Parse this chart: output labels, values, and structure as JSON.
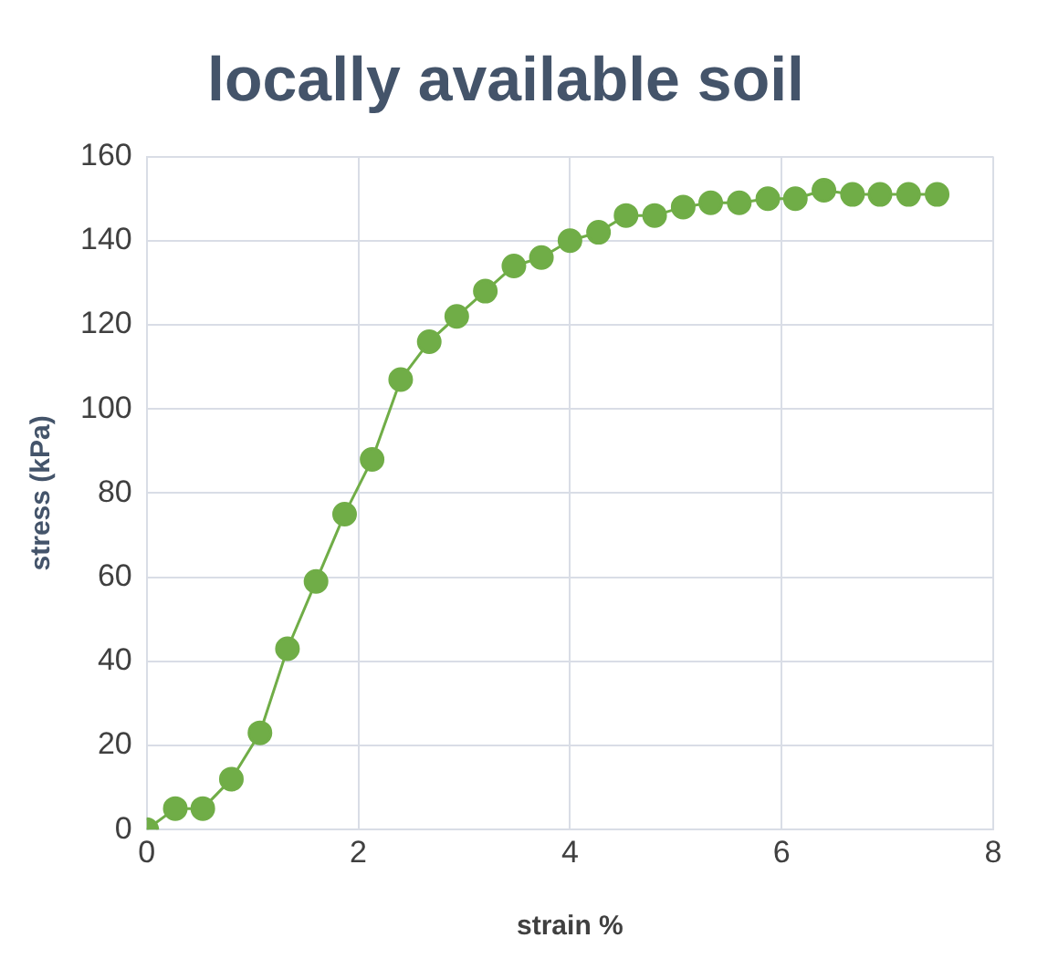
{
  "chart_data": {
    "type": "line",
    "title": "locally available soil",
    "xlabel": "strain %",
    "ylabel": "stress (kPa)",
    "x": [
      0,
      0.27,
      0.53,
      0.8,
      1.07,
      1.33,
      1.6,
      1.87,
      2.13,
      2.4,
      2.67,
      2.93,
      3.2,
      3.47,
      3.73,
      4.0,
      4.27,
      4.53,
      4.8,
      5.07,
      5.33,
      5.6,
      5.87,
      6.13,
      6.4,
      6.67,
      6.93,
      7.2,
      7.47
    ],
    "series": [
      {
        "color": "#70ad47",
        "values": [
          0,
          5,
          5,
          12,
          23,
          43,
          59,
          75,
          88,
          107,
          116,
          122,
          128,
          134,
          136,
          140,
          142,
          146,
          146,
          148,
          149,
          149,
          150,
          150,
          152,
          151,
          151,
          151,
          151
        ]
      }
    ],
    "xlim": [
      0,
      8
    ],
    "xticks": [
      0,
      2,
      4,
      6,
      8
    ],
    "ylim": [
      0,
      160
    ],
    "yticks": [
      0,
      20,
      40,
      60,
      80,
      100,
      120,
      140,
      160
    ],
    "grid": true,
    "legend": false,
    "marker": "circle",
    "line_style": "solid"
  }
}
